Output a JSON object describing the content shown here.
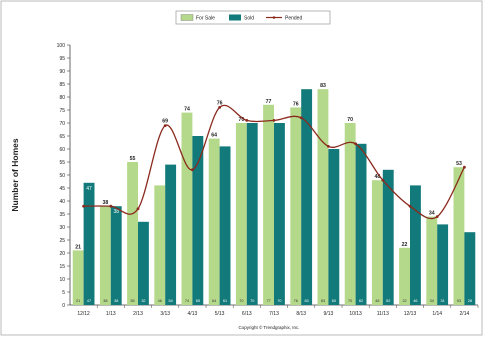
{
  "chart_data": {
    "type": "bar",
    "ylabel": "Number of Homes",
    "footer": "Copyright © Trendgraphix, Inc.",
    "ylim": [
      0,
      100
    ],
    "yticks": [
      0,
      5,
      10,
      15,
      20,
      25,
      30,
      35,
      40,
      45,
      50,
      55,
      60,
      65,
      70,
      75,
      80,
      85,
      90,
      95,
      100
    ],
    "categories": [
      "12/12",
      "1/13",
      "2/13",
      "3/13",
      "4/13",
      "5/13",
      "6/13",
      "7/13",
      "8/13",
      "9/13",
      "10/13",
      "11/13",
      "12/13",
      "1/14",
      "2/14"
    ],
    "legend_position": "top-center",
    "grid": false,
    "series": [
      {
        "name": "For Sale",
        "kind": "bar",
        "color": "#b5d98a",
        "values": [
          21,
          38,
          55,
          46,
          74,
          64,
          70,
          77,
          76,
          83,
          70,
          48,
          22,
          34,
          53
        ],
        "labels": [
          "21",
          "38",
          "55",
          "",
          "74",
          "64",
          "70",
          "77",
          "76",
          "83",
          "70",
          "48",
          "22",
          "34",
          "53"
        ]
      },
      {
        "name": "Sold",
        "kind": "bar",
        "color": "#127a7a",
        "values": [
          47,
          38,
          32,
          54,
          65,
          61,
          70,
          70,
          83,
          60,
          62,
          52,
          46,
          31,
          28
        ],
        "labels": [
          "47",
          "38",
          "",
          "",
          "",
          "",
          "",
          "",
          "",
          "",
          "",
          "",
          "",
          "",
          ""
        ]
      },
      {
        "name": "Pended",
        "kind": "line",
        "color": "#8b2a1e",
        "values": [
          38,
          38,
          37,
          69,
          52,
          76,
          71,
          71,
          72,
          61,
          62,
          48,
          38,
          34,
          53
        ],
        "labels": [
          "",
          "",
          "",
          "69",
          "",
          "76",
          "",
          "",
          "",
          "",
          "",
          "",
          "",
          "",
          ""
        ]
      }
    ],
    "bottom_counts": [
      [
        "21",
        "47"
      ],
      [
        "38",
        "38"
      ],
      [
        "55",
        "32"
      ],
      [
        "46",
        "54"
      ],
      [
        "74",
        "65"
      ],
      [
        "64",
        "61"
      ],
      [
        "70",
        "70"
      ],
      [
        "77",
        "70"
      ],
      [
        "76",
        "83"
      ],
      [
        "83",
        "60"
      ],
      [
        "70",
        "62"
      ],
      [
        "48",
        "52"
      ],
      [
        "22",
        "46"
      ],
      [
        "34",
        "31"
      ],
      [
        "53",
        "28"
      ]
    ]
  }
}
